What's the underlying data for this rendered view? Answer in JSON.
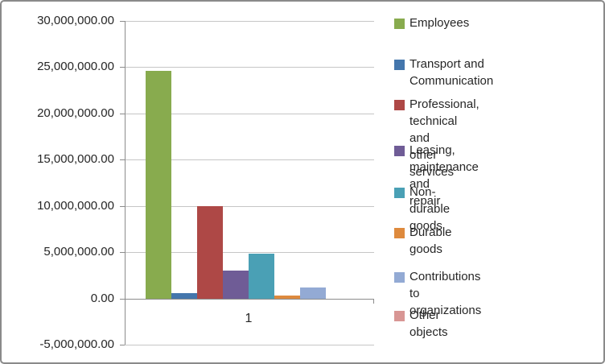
{
  "chart_data": {
    "type": "bar",
    "title": "",
    "categories": [
      "1"
    ],
    "ylim": [
      -5000000,
      30000000
    ],
    "grid": true,
    "legend_position": "right",
    "y_ticks": [
      {
        "value": 30000000,
        "label": "30,000,000.00"
      },
      {
        "value": 25000000,
        "label": "25,000,000.00"
      },
      {
        "value": 20000000,
        "label": "20,000,000.00"
      },
      {
        "value": 15000000,
        "label": "15,000,000.00"
      },
      {
        "value": 10000000,
        "label": "10,000,000.00"
      },
      {
        "value": 5000000,
        "label": "5,000,000.00"
      },
      {
        "value": 0,
        "label": "0.00"
      },
      {
        "value": -5000000,
        "label": "-5,000,000.00"
      }
    ],
    "series": [
      {
        "name": "Employees",
        "legend_lines": [
          "Employees"
        ],
        "values": [
          24600000
        ],
        "color": "#88AB4E"
      },
      {
        "name": "Transport and Communication",
        "legend_lines": [
          "Transport and",
          "Communication"
        ],
        "values": [
          600000
        ],
        "color": "#4476AC"
      },
      {
        "name": "Professional, technical and other services",
        "legend_lines": [
          "Professional, technical and",
          "other services"
        ],
        "values": [
          10000000
        ],
        "color": "#AE4846"
      },
      {
        "name": "Leasing, maintenance and repair",
        "legend_lines": [
          "Leasing, maintenance and",
          "repair"
        ],
        "values": [
          3000000
        ],
        "color": "#6F5C96"
      },
      {
        "name": "Non-durable goods",
        "legend_lines": [
          "Non-durable goods"
        ],
        "values": [
          4800000
        ],
        "color": "#4AA0B5"
      },
      {
        "name": "Durable goods",
        "legend_lines": [
          "Durable goods"
        ],
        "values": [
          300000
        ],
        "color": "#DE8A3D"
      },
      {
        "name": "Contributions to organizations",
        "legend_lines": [
          "Contributions to",
          "organizations"
        ],
        "values": [
          1200000
        ],
        "color": "#93AAD4"
      },
      {
        "name": "Other objects",
        "legend_lines": [
          "Other objects"
        ],
        "values": [
          0
        ],
        "color": "#D89694"
      }
    ],
    "colors": {
      "gridline": "#C6C6C6",
      "axis": "#8C8C8C",
      "text": "#262626",
      "frame_border": "#8A8A8A",
      "background": "#FFFFFF"
    }
  }
}
